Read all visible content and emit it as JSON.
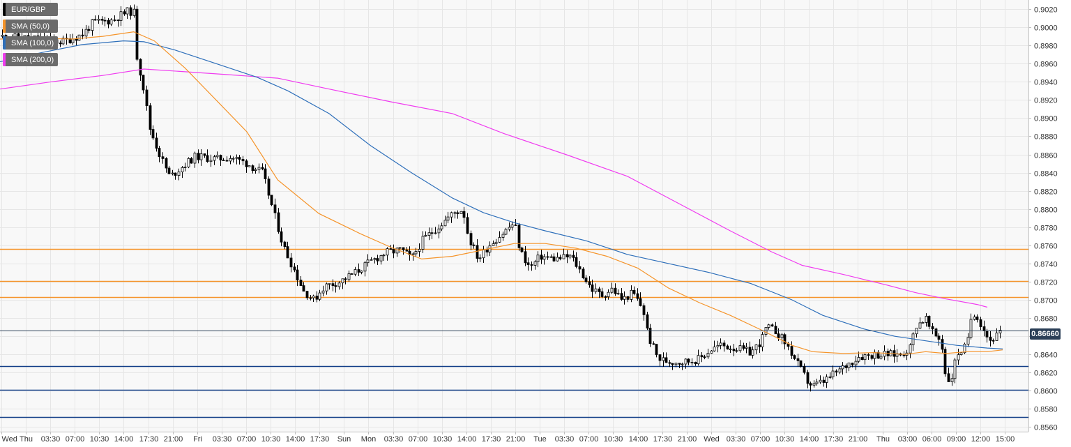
{
  "chart_data": {
    "type": "candlestick",
    "symbol": "EUR/GBP",
    "ylim": [
      0.8555,
      0.903
    ],
    "y_ticks": [
      "0.9020",
      "0.9000",
      "0.8980",
      "0.8960",
      "0.8940",
      "0.8920",
      "0.8900",
      "0.8880",
      "0.8860",
      "0.8840",
      "0.8820",
      "0.8800",
      "0.8780",
      "0.8760",
      "0.8740",
      "0.8720",
      "0.8700",
      "0.8680",
      "0.8660",
      "0.8640",
      "0.8620",
      "0.8600",
      "0.8580",
      "0.8560"
    ],
    "x_ticks": [
      "Wed",
      "Thu",
      "03:30",
      "07:00",
      "10:30",
      "14:00",
      "17:30",
      "21:00",
      "Fri",
      "03:30",
      "07:00",
      "10:30",
      "14:00",
      "17:30",
      "Sun",
      "Mon",
      "03:30",
      "07:00",
      "10:30",
      "14:00",
      "17:30",
      "21:00",
      "Tue",
      "03:30",
      "07:00",
      "10:30",
      "14:00",
      "17:30",
      "21:00",
      "Wed",
      "03:30",
      "07:00",
      "10:30",
      "14:00",
      "17:30",
      "21:00",
      "Thu",
      "03:00",
      "06:00",
      "09:00",
      "12:00",
      "15:00"
    ],
    "current_price": "0.86660",
    "current_price_value": 0.8666,
    "legend": [
      {
        "label": "EUR/GBP",
        "color": "#000000"
      },
      {
        "label": "SMA (50,0)",
        "color": "#f5942a"
      },
      {
        "label": "SMA (100,0)",
        "color": "#2e6fba"
      },
      {
        "label": "SMA (200,0)",
        "color": "#f03cf0"
      }
    ],
    "resistance_levels": [
      0.8756,
      0.8721,
      0.8703
    ],
    "support_levels": [
      0.8627,
      0.8601,
      0.8571
    ],
    "resistance_color": "#f5942a",
    "support_color": "#123e87",
    "sma50": [
      [
        0,
        0.8987
      ],
      [
        0.03,
        0.8988
      ],
      [
        0.07,
        0.8987
      ],
      [
        0.1,
        0.899
      ],
      [
        0.13,
        0.8995
      ],
      [
        0.15,
        0.8985
      ],
      [
        0.18,
        0.8955
      ],
      [
        0.21,
        0.892
      ],
      [
        0.24,
        0.8885
      ],
      [
        0.27,
        0.8832
      ],
      [
        0.31,
        0.8795
      ],
      [
        0.35,
        0.8773
      ],
      [
        0.38,
        0.8758
      ],
      [
        0.41,
        0.8745
      ],
      [
        0.44,
        0.8748
      ],
      [
        0.47,
        0.8755
      ],
      [
        0.5,
        0.8762
      ],
      [
        0.53,
        0.8762
      ],
      [
        0.56,
        0.8757
      ],
      [
        0.59,
        0.8748
      ],
      [
        0.62,
        0.8735
      ],
      [
        0.65,
        0.8713
      ],
      [
        0.68,
        0.8697
      ],
      [
        0.71,
        0.8683
      ],
      [
        0.74,
        0.8667
      ],
      [
        0.77,
        0.865
      ],
      [
        0.79,
        0.8643
      ],
      [
        0.82,
        0.8641
      ],
      [
        0.85,
        0.8642
      ],
      [
        0.88,
        0.864
      ],
      [
        0.9,
        0.8643
      ],
      [
        0.92,
        0.8641
      ],
      [
        0.94,
        0.8643
      ],
      [
        0.96,
        0.8643
      ],
      [
        0.975,
        0.8645
      ]
    ],
    "sma100": [
      [
        0,
        0.8962
      ],
      [
        0.04,
        0.8972
      ],
      [
        0.08,
        0.8981
      ],
      [
        0.12,
        0.8985
      ],
      [
        0.14,
        0.8984
      ],
      [
        0.17,
        0.8975
      ],
      [
        0.21,
        0.896
      ],
      [
        0.25,
        0.8945
      ],
      [
        0.28,
        0.893
      ],
      [
        0.32,
        0.8905
      ],
      [
        0.36,
        0.887
      ],
      [
        0.4,
        0.884
      ],
      [
        0.44,
        0.8812
      ],
      [
        0.47,
        0.8796
      ],
      [
        0.5,
        0.8785
      ],
      [
        0.53,
        0.8776
      ],
      [
        0.57,
        0.8765
      ],
      [
        0.61,
        0.875
      ],
      [
        0.65,
        0.874
      ],
      [
        0.69,
        0.873
      ],
      [
        0.73,
        0.8718
      ],
      [
        0.77,
        0.87
      ],
      [
        0.8,
        0.8683
      ],
      [
        0.84,
        0.8668
      ],
      [
        0.87,
        0.866
      ],
      [
        0.9,
        0.8655
      ],
      [
        0.93,
        0.865
      ],
      [
        0.96,
        0.8647
      ],
      [
        0.975,
        0.8646
      ]
    ],
    "sma200": [
      [
        0,
        0.8932
      ],
      [
        0.05,
        0.894
      ],
      [
        0.1,
        0.8947
      ],
      [
        0.14,
        0.8954
      ],
      [
        0.18,
        0.8951
      ],
      [
        0.22,
        0.8948
      ],
      [
        0.27,
        0.8944
      ],
      [
        0.32,
        0.8932
      ],
      [
        0.38,
        0.8918
      ],
      [
        0.44,
        0.8905
      ],
      [
        0.49,
        0.8883
      ],
      [
        0.55,
        0.886
      ],
      [
        0.61,
        0.8836
      ],
      [
        0.66,
        0.8806
      ],
      [
        0.71,
        0.8776
      ],
      [
        0.75,
        0.8753
      ],
      [
        0.78,
        0.8738
      ],
      [
        0.82,
        0.8728
      ],
      [
        0.86,
        0.8717
      ],
      [
        0.89,
        0.8708
      ],
      [
        0.92,
        0.8701
      ],
      [
        0.95,
        0.8695
      ],
      [
        0.96,
        0.8692
      ]
    ],
    "price_path": [
      [
        0,
        0.899
      ],
      [
        0.03,
        0.8988
      ],
      [
        0.06,
        0.8984
      ],
      [
        0.08,
        0.8992
      ],
      [
        0.09,
        0.9005
      ],
      [
        0.11,
        0.9008
      ],
      [
        0.115,
        0.9012
      ],
      [
        0.125,
        0.9018
      ],
      [
        0.13,
        0.9016
      ],
      [
        0.133,
        0.8968
      ],
      [
        0.14,
        0.893
      ],
      [
        0.145,
        0.889
      ],
      [
        0.155,
        0.886
      ],
      [
        0.165,
        0.8835
      ],
      [
        0.175,
        0.8845
      ],
      [
        0.19,
        0.8858
      ],
      [
        0.21,
        0.8855
      ],
      [
        0.225,
        0.8857
      ],
      [
        0.24,
        0.885
      ],
      [
        0.255,
        0.884
      ],
      [
        0.265,
        0.88
      ],
      [
        0.275,
        0.876
      ],
      [
        0.285,
        0.8735
      ],
      [
        0.295,
        0.871
      ],
      [
        0.305,
        0.87
      ],
      [
        0.315,
        0.8715
      ],
      [
        0.33,
        0.872
      ],
      [
        0.345,
        0.873
      ],
      [
        0.36,
        0.8742
      ],
      [
        0.375,
        0.8752
      ],
      [
        0.39,
        0.8755
      ],
      [
        0.4,
        0.8745
      ],
      [
        0.41,
        0.8765
      ],
      [
        0.425,
        0.878
      ],
      [
        0.44,
        0.8795
      ],
      [
        0.45,
        0.88
      ],
      [
        0.455,
        0.877
      ],
      [
        0.465,
        0.8745
      ],
      [
        0.475,
        0.876
      ],
      [
        0.49,
        0.8775
      ],
      [
        0.5,
        0.8785
      ],
      [
        0.505,
        0.8755
      ],
      [
        0.515,
        0.8735
      ],
      [
        0.525,
        0.8748
      ],
      [
        0.54,
        0.8745
      ],
      [
        0.555,
        0.8748
      ],
      [
        0.565,
        0.873
      ],
      [
        0.575,
        0.8712
      ],
      [
        0.585,
        0.8705
      ],
      [
        0.595,
        0.8712
      ],
      [
        0.605,
        0.87
      ],
      [
        0.615,
        0.8708
      ],
      [
        0.625,
        0.869
      ],
      [
        0.63,
        0.866
      ],
      [
        0.64,
        0.8635
      ],
      [
        0.65,
        0.8632
      ],
      [
        0.665,
        0.8632
      ],
      [
        0.68,
        0.8635
      ],
      [
        0.69,
        0.8645
      ],
      [
        0.7,
        0.865
      ],
      [
        0.715,
        0.8647
      ],
      [
        0.73,
        0.8642
      ],
      [
        0.74,
        0.8655
      ],
      [
        0.745,
        0.867
      ],
      [
        0.755,
        0.8665
      ],
      [
        0.765,
        0.865
      ],
      [
        0.775,
        0.863
      ],
      [
        0.785,
        0.861
      ],
      [
        0.79,
        0.8605
      ],
      [
        0.8,
        0.861
      ],
      [
        0.81,
        0.8618
      ],
      [
        0.825,
        0.863
      ],
      [
        0.835,
        0.8638
      ],
      [
        0.85,
        0.864
      ],
      [
        0.86,
        0.864
      ],
      [
        0.875,
        0.864
      ],
      [
        0.885,
        0.8648
      ],
      [
        0.89,
        0.8672
      ],
      [
        0.9,
        0.868
      ],
      [
        0.905,
        0.8665
      ],
      [
        0.915,
        0.8655
      ],
      [
        0.92,
        0.861
      ],
      [
        0.925,
        0.8615
      ],
      [
        0.93,
        0.864
      ],
      [
        0.94,
        0.865
      ],
      [
        0.945,
        0.8688
      ],
      [
        0.95,
        0.8682
      ],
      [
        0.955,
        0.867
      ],
      [
        0.962,
        0.8655
      ],
      [
        0.968,
        0.866
      ],
      [
        0.975,
        0.8666
      ]
    ]
  }
}
